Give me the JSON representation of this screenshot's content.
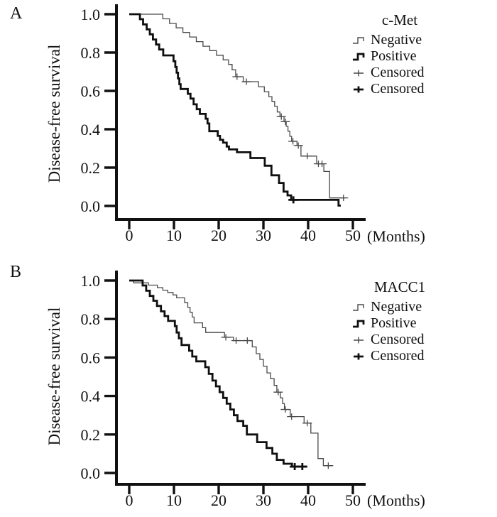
{
  "figure": {
    "background": "#ffffff",
    "text_color": "#111111",
    "axis_color": "#111111",
    "panels": [
      {
        "label": "A",
        "y_axis_label": "Disease-free survival",
        "x_unit_label": "(Months)",
        "legend": {
          "title": "c-Met",
          "items": [
            {
              "label": "Negative",
              "symbol": "step-thin"
            },
            {
              "label": "Positive",
              "symbol": "step-thick"
            },
            {
              "label": "Censored",
              "symbol": "plus-thin"
            },
            {
              "label": "Censored",
              "symbol": "plus-thick"
            }
          ]
        }
      },
      {
        "label": "B",
        "y_axis_label": "Disease-free survival",
        "x_unit_label": "(Months)",
        "legend": {
          "title": "MACC1",
          "items": [
            {
              "label": "Negative",
              "symbol": "step-thin"
            },
            {
              "label": "Positive",
              "symbol": "step-thick"
            },
            {
              "label": "Censored",
              "symbol": "plus-thin"
            },
            {
              "label": "Censored",
              "symbol": "plus-thick"
            }
          ]
        }
      }
    ]
  },
  "chart_data": [
    {
      "type": "line",
      "subtype": "kaplan-meier-step",
      "title": "c-Met",
      "xlabel": "(Months)",
      "ylabel": "Disease-free survival",
      "xlim": [
        0,
        52
      ],
      "ylim": [
        0,
        1.0
      ],
      "xticks": [
        0,
        10,
        20,
        30,
        40,
        50
      ],
      "ytick_labels": [
        "1.0",
        "0.8",
        "0.6",
        "0.4",
        "0.2",
        "0.0"
      ],
      "grid": false,
      "legend_position": "top-right",
      "series": [
        {
          "name": "Negative",
          "style": "thin",
          "color": "#4a4a4a",
          "line_width": 1.3,
          "points": [
            [
              0,
              1.0
            ],
            [
              7.5,
              0.976
            ],
            [
              9,
              0.952
            ],
            [
              10.5,
              0.929
            ],
            [
              12,
              0.905
            ],
            [
              13.5,
              0.881
            ],
            [
              15,
              0.857
            ],
            [
              16.5,
              0.833
            ],
            [
              18,
              0.81
            ],
            [
              19.5,
              0.786
            ],
            [
              21,
              0.762
            ],
            [
              22.2,
              0.738
            ],
            [
              23.0,
              0.71
            ],
            [
              23.8,
              0.674
            ],
            [
              25.5,
              0.648
            ],
            [
              28.9,
              0.622
            ],
            [
              30.2,
              0.596
            ],
            [
              31.2,
              0.57
            ],
            [
              31.9,
              0.545
            ],
            [
              32.5,
              0.52
            ],
            [
              33.1,
              0.49
            ],
            [
              33.7,
              0.466
            ],
            [
              34.6,
              0.44
            ],
            [
              35.1,
              0.415
            ],
            [
              35.5,
              0.39
            ],
            [
              35.9,
              0.363
            ],
            [
              36.3,
              0.337
            ],
            [
              37.5,
              0.315
            ],
            [
              38.4,
              0.26
            ],
            [
              41.9,
              0.22
            ],
            [
              43.5,
              0.18
            ],
            [
              44.8,
              0.042
            ]
          ],
          "censored": [
            [
              24.1,
              0.674
            ],
            [
              26.2,
              0.648
            ],
            [
              34.0,
              0.466
            ],
            [
              34.9,
              0.44
            ],
            [
              36.6,
              0.337
            ],
            [
              37.8,
              0.315
            ],
            [
              39.8,
              0.26
            ],
            [
              42.3,
              0.22
            ],
            [
              43.1,
              0.22
            ],
            [
              47.9,
              0.042
            ]
          ],
          "end": 48.5
        },
        {
          "name": "Positive",
          "style": "thick",
          "color": "#0f0f0f",
          "line_width": 2.8,
          "points": [
            [
              0,
              1.0
            ],
            [
              2.4,
              0.974
            ],
            [
              3.1,
              0.947
            ],
            [
              3.9,
              0.921
            ],
            [
              4.6,
              0.895
            ],
            [
              5.3,
              0.868
            ],
            [
              6.0,
              0.842
            ],
            [
              6.7,
              0.816
            ],
            [
              7.6,
              0.785
            ],
            [
              9.9,
              0.755
            ],
            [
              10.3,
              0.725
            ],
            [
              10.6,
              0.695
            ],
            [
              10.9,
              0.665
            ],
            [
              11.2,
              0.635
            ],
            [
              11.5,
              0.61
            ],
            [
              13.1,
              0.585
            ],
            [
              13.7,
              0.56
            ],
            [
              14.4,
              0.53
            ],
            [
              15.1,
              0.505
            ],
            [
              15.8,
              0.48
            ],
            [
              17.1,
              0.455
            ],
            [
              17.5,
              0.43
            ],
            [
              17.9,
              0.39
            ],
            [
              19.8,
              0.365
            ],
            [
              20.3,
              0.345
            ],
            [
              21.0,
              0.33
            ],
            [
              21.8,
              0.31
            ],
            [
              22.3,
              0.295
            ],
            [
              24.1,
              0.28
            ],
            [
              27.1,
              0.25
            ],
            [
              30.3,
              0.21
            ],
            [
              31.8,
              0.16
            ],
            [
              33.5,
              0.12
            ],
            [
              34.5,
              0.075
            ],
            [
              35.4,
              0.055
            ],
            [
              36.2,
              0.032
            ],
            [
              46.8,
              0.002
            ]
          ],
          "censored": [
            [
              36.7,
              0.032
            ]
          ],
          "end": 47.3
        }
      ]
    },
    {
      "type": "line",
      "subtype": "kaplan-meier-step",
      "title": "MACC1",
      "xlabel": "(Months)",
      "ylabel": "Disease-free survival",
      "xlim": [
        0,
        52
      ],
      "ylim": [
        0,
        1.0
      ],
      "xticks": [
        0,
        10,
        20,
        30,
        40,
        50
      ],
      "ytick_labels": [
        "1.0",
        "0.8",
        "0.6",
        "0.4",
        "0.2",
        "0.0"
      ],
      "grid": false,
      "legend_position": "top-right",
      "series": [
        {
          "name": "Negative",
          "style": "thin",
          "color": "#4a4a4a",
          "line_width": 1.3,
          "points": [
            [
              0,
              1.0
            ],
            [
              1.0,
              0.988
            ],
            [
              4.3,
              0.976
            ],
            [
              6.3,
              0.963
            ],
            [
              7.5,
              0.95
            ],
            [
              8.6,
              0.938
            ],
            [
              9.8,
              0.925
            ],
            [
              10.6,
              0.91
            ],
            [
              12.4,
              0.885
            ],
            [
              13.1,
              0.86
            ],
            [
              13.6,
              0.835
            ],
            [
              14.1,
              0.81
            ],
            [
              14.5,
              0.78
            ],
            [
              16.4,
              0.755
            ],
            [
              17.1,
              0.73
            ],
            [
              21.3,
              0.705
            ],
            [
              23.3,
              0.688
            ],
            [
              27.5,
              0.655
            ],
            [
              28.4,
              0.62
            ],
            [
              29.2,
              0.59
            ],
            [
              30.0,
              0.555
            ],
            [
              30.8,
              0.52
            ],
            [
              31.6,
              0.49
            ],
            [
              32.4,
              0.455
            ],
            [
              33.0,
              0.42
            ],
            [
              33.8,
              0.39
            ],
            [
              34.3,
              0.36
            ],
            [
              34.7,
              0.33
            ],
            [
              36.0,
              0.293
            ],
            [
              39.1,
              0.259
            ],
            [
              40.6,
              0.207
            ],
            [
              42.2,
              0.075
            ],
            [
              43.4,
              0.038
            ]
          ],
          "censored": [
            [
              21.6,
              0.705
            ],
            [
              23.9,
              0.688
            ],
            [
              26.4,
              0.688
            ],
            [
              33.3,
              0.42
            ],
            [
              34.9,
              0.33
            ],
            [
              36.3,
              0.293
            ],
            [
              39.8,
              0.259
            ],
            [
              44.5,
              0.038
            ]
          ],
          "end": 45.6
        },
        {
          "name": "Positive",
          "style": "thick",
          "color": "#0f0f0f",
          "line_width": 2.8,
          "points": [
            [
              0,
              1.0
            ],
            [
              3.0,
              0.974
            ],
            [
              3.8,
              0.947
            ],
            [
              4.6,
              0.92
            ],
            [
              5.4,
              0.895
            ],
            [
              6.2,
              0.868
            ],
            [
              7.1,
              0.84
            ],
            [
              7.9,
              0.815
            ],
            [
              8.7,
              0.79
            ],
            [
              10.2,
              0.763
            ],
            [
              10.6,
              0.73
            ],
            [
              11.1,
              0.7
            ],
            [
              11.7,
              0.665
            ],
            [
              13.4,
              0.635
            ],
            [
              14.1,
              0.605
            ],
            [
              15.0,
              0.58
            ],
            [
              17.0,
              0.55
            ],
            [
              17.8,
              0.515
            ],
            [
              18.6,
              0.48
            ],
            [
              19.4,
              0.45
            ],
            [
              20.2,
              0.42
            ],
            [
              21.0,
              0.39
            ],
            [
              21.8,
              0.36
            ],
            [
              22.6,
              0.33
            ],
            [
              23.4,
              0.3
            ],
            [
              24.2,
              0.27
            ],
            [
              25.5,
              0.245
            ],
            [
              26.3,
              0.2
            ],
            [
              28.6,
              0.16
            ],
            [
              30.7,
              0.13
            ],
            [
              32.0,
              0.1
            ],
            [
              33.0,
              0.068
            ],
            [
              34.5,
              0.048
            ],
            [
              36.4,
              0.033
            ]
          ],
          "censored": [
            [
              37.0,
              0.033
            ],
            [
              38.7,
              0.033
            ]
          ],
          "end": 39.6
        }
      ]
    }
  ]
}
